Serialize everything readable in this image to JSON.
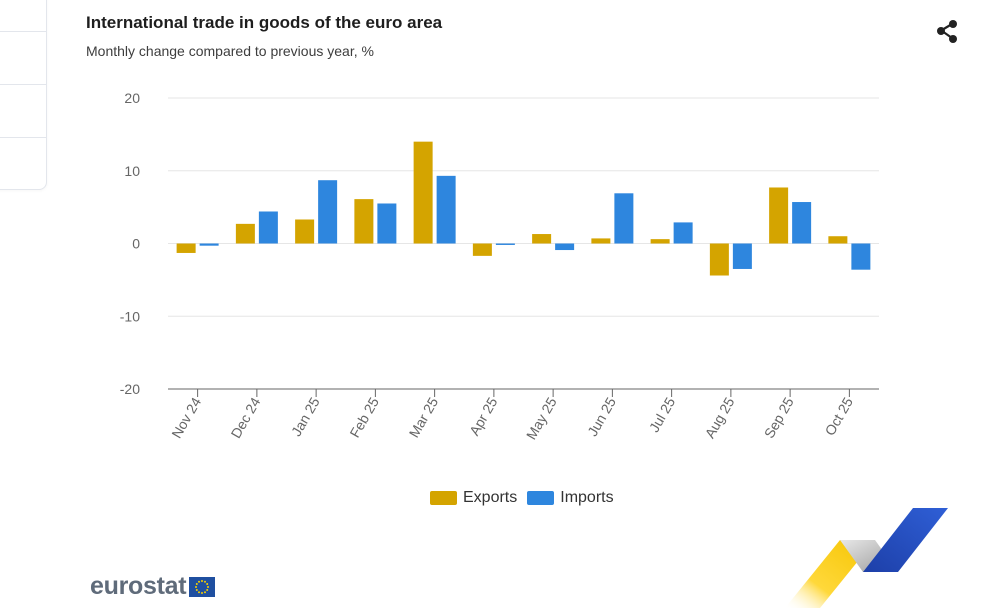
{
  "colors": {
    "exports": "#d4a400",
    "imports": "#2e86de",
    "grid": "#e6e6e6",
    "axis": "#666666",
    "text": "#666666"
  },
  "chart_data": {
    "type": "bar",
    "title": "International trade in goods of the euro area",
    "subtitle": "Monthly change compared to previous year, %",
    "xlabel": "",
    "ylabel": "",
    "ylim": [
      -20,
      20
    ],
    "yticks": [
      20,
      10,
      0,
      -10,
      -20
    ],
    "ytick_labels": [
      "20",
      "10",
      "0",
      "-10",
      "-20"
    ],
    "grid": true,
    "legend_position": "bottom-center",
    "categories": [
      "Nov 24",
      "Dec 24",
      "Jan 25",
      "Feb 25",
      "Mar 25",
      "Apr 25",
      "May 25",
      "Jun 25",
      "Jul 25",
      "Aug 25",
      "Sep 25",
      "Oct 25"
    ],
    "series": [
      {
        "name": "Exports",
        "values": [
          -1.3,
          2.7,
          3.3,
          6.1,
          14.0,
          -1.7,
          1.3,
          0.7,
          0.6,
          -4.4,
          7.7,
          1.0
        ]
      },
      {
        "name": "Imports",
        "values": [
          -0.3,
          4.4,
          8.7,
          5.5,
          9.3,
          -0.2,
          -0.9,
          6.9,
          2.9,
          -3.5,
          5.7,
          -3.6
        ]
      }
    ]
  },
  "legend": {
    "exports_label": "Exports",
    "imports_label": "Imports"
  },
  "icons": {
    "share": "share-icon",
    "flag": "eu-flag-icon"
  },
  "logo": {
    "text": "eurostat"
  }
}
